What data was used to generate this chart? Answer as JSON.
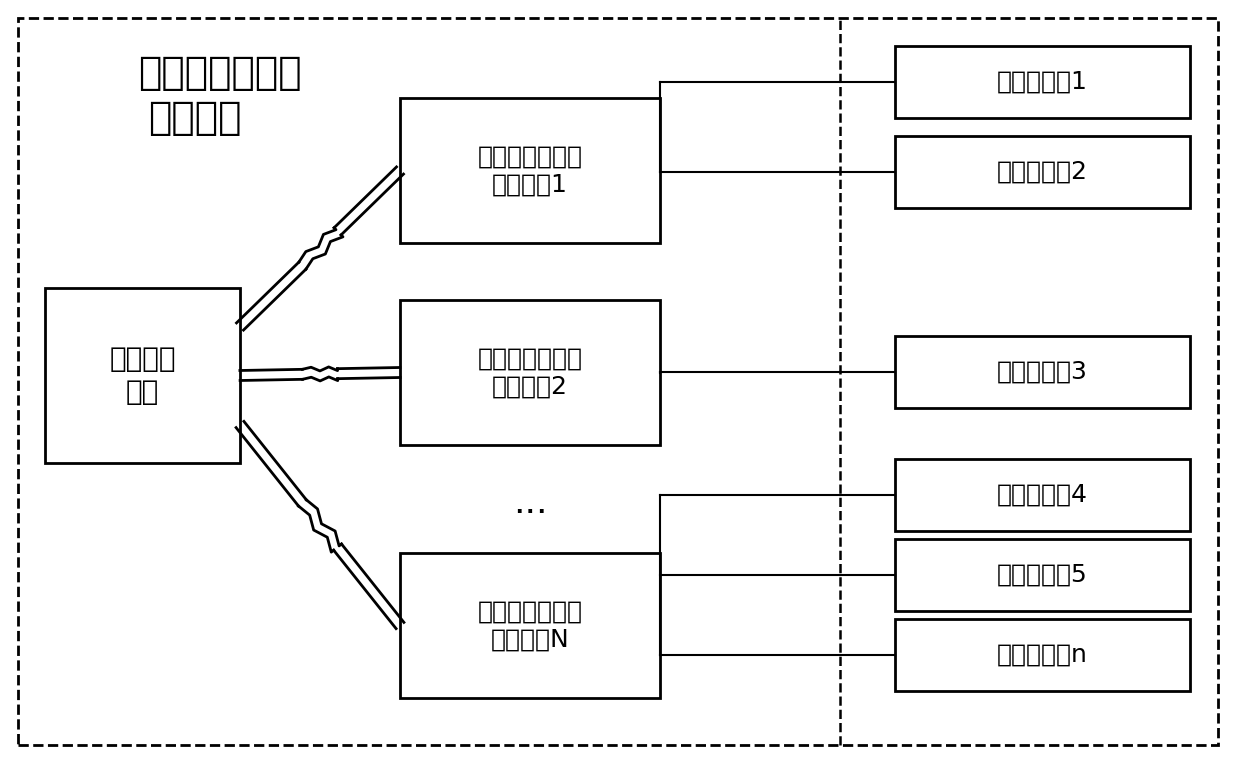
{
  "title_line1": "电路板电源参数",
  "title_line2": "测试系统",
  "remote_label": "远程控制\n设备",
  "dev_labels": [
    "电路板电源参数\n测试设备1",
    "电路板电源参数\n测试设备2",
    "电路板电源参数\n测试设备N"
  ],
  "board_labels": [
    "待测电路板1",
    "待测电路板2",
    "待测电路板3",
    "待测电路板4",
    "待测电路板5",
    "待测电路板n"
  ],
  "bg_color": "#ffffff"
}
